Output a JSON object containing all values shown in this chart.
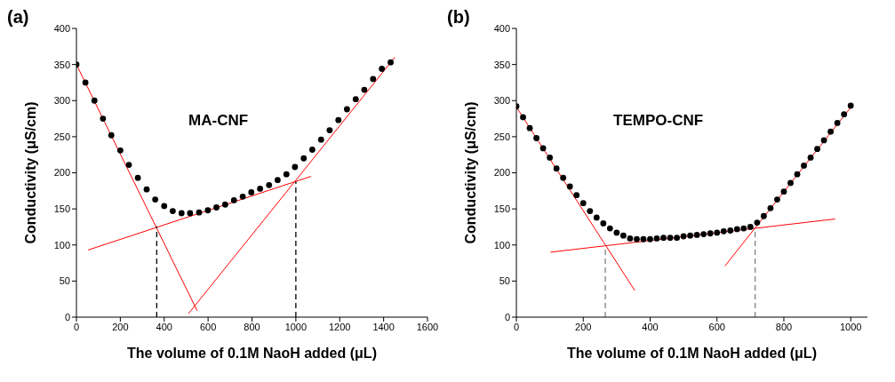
{
  "chart_data": [
    {
      "type": "scatter",
      "title": "(a)",
      "xlabel": "The volume of 0.1M NaoH added (μL)",
      "ylabel": "Conductivity (μS/cm)",
      "xlim": [
        0,
        1600
      ],
      "xticks": [
        0,
        200,
        400,
        600,
        800,
        1000,
        1200,
        1400,
        1600
      ],
      "ylim": [
        0,
        400
      ],
      "yticks": [
        0,
        50,
        100,
        150,
        200,
        250,
        300,
        350,
        400
      ],
      "annotations": [
        "MA-CNF"
      ],
      "series": [
        {
          "marker": "circle",
          "color": "#000000",
          "x": [
            0,
            41,
            82,
            121,
            159,
            200,
            239,
            280,
            320,
            359,
            400,
            439,
            479,
            518,
            559,
            599,
            638,
            678,
            718,
            758,
            797,
            837,
            878,
            917,
            957,
            996,
            1036,
            1075,
            1115,
            1154,
            1194,
            1233,
            1273,
            1312,
            1352,
            1392,
            1432
          ],
          "values": [
            350,
            325,
            300,
            275,
            252,
            231,
            211,
            193,
            177,
            163,
            154,
            147,
            144,
            144,
            145,
            148,
            152,
            156,
            162,
            167,
            173,
            178,
            183,
            190,
            198,
            208,
            220,
            232,
            246,
            259,
            273,
            288,
            302,
            315,
            330,
            344,
            353
          ]
        },
        {
          "type": "line",
          "color": "#ff0000",
          "x": [
            0,
            550
          ],
          "values": [
            350,
            9
          ]
        },
        {
          "type": "line",
          "color": "#ff0000",
          "x": [
            511,
            1451
          ],
          "values": [
            5,
            360
          ]
        },
        {
          "type": "line",
          "color": "#ff0000",
          "x": [
            53,
            1069
          ],
          "values": [
            93,
            195
          ]
        },
        {
          "type": "line",
          "color": "#000000",
          "line_style": "dashed",
          "x": [
            366,
            366
          ],
          "values": [
            0,
            126
          ]
        },
        {
          "type": "line",
          "color": "#000000",
          "line_style": "dashed",
          "x": [
            1000,
            1000
          ],
          "values": [
            0,
            188
          ]
        }
      ]
    },
    {
      "type": "scatter",
      "title": "(b)",
      "xlabel": "The volume of 0.1M NaoH added (μL)",
      "ylabel": "Conductivity (μS/cm)",
      "xlim": [
        0,
        1050
      ],
      "xticks": [
        0,
        200,
        400,
        600,
        800,
        1000
      ],
      "ylim": [
        0,
        400
      ],
      "yticks": [
        0,
        50,
        100,
        150,
        200,
        250,
        300,
        350,
        400
      ],
      "annotations": [
        "TEMPO-CNF"
      ],
      "series": [
        {
          "marker": "circle",
          "color": "#000000",
          "x": [
            0,
            20,
            40,
            60,
            80,
            100,
            120,
            140,
            160,
            180,
            200,
            220,
            240,
            260,
            280,
            300,
            320,
            340,
            360,
            380,
            400,
            420,
            440,
            460,
            480,
            500,
            520,
            540,
            560,
            580,
            600,
            620,
            640,
            660,
            680,
            700,
            720,
            740,
            760,
            780,
            800,
            820,
            840,
            860,
            880,
            900,
            920,
            940,
            960,
            980,
            1000
          ],
          "values": [
            292,
            277,
            262,
            248,
            234,
            221,
            206,
            193,
            181,
            169,
            158,
            147,
            138,
            130,
            123,
            117,
            113,
            109,
            108,
            108,
            108,
            109,
            110,
            110,
            110,
            112,
            113,
            114,
            115,
            116,
            117,
            119,
            120,
            122,
            123,
            125,
            131,
            140,
            151,
            163,
            174,
            186,
            198,
            210,
            221,
            233,
            245,
            257,
            269,
            281,
            293
          ]
        },
        {
          "type": "line",
          "color": "#ff0000",
          "x": [
            0,
            354
          ],
          "values": [
            291,
            37
          ]
        },
        {
          "type": "line",
          "color": "#ff0000",
          "x": [
            102,
            953
          ],
          "values": [
            90,
            136
          ]
        },
        {
          "type": "line",
          "color": "#ff0000",
          "x": [
            624,
            1006
          ],
          "values": [
            71,
            294
          ]
        },
        {
          "type": "line",
          "color": "#808080",
          "line_style": "dashed",
          "x": [
            266,
            266
          ],
          "values": [
            0,
            100
          ]
        },
        {
          "type": "line",
          "color": "#808080",
          "line_style": "dashed",
          "x": [
            714,
            714
          ],
          "values": [
            0,
            125
          ]
        }
      ]
    }
  ]
}
